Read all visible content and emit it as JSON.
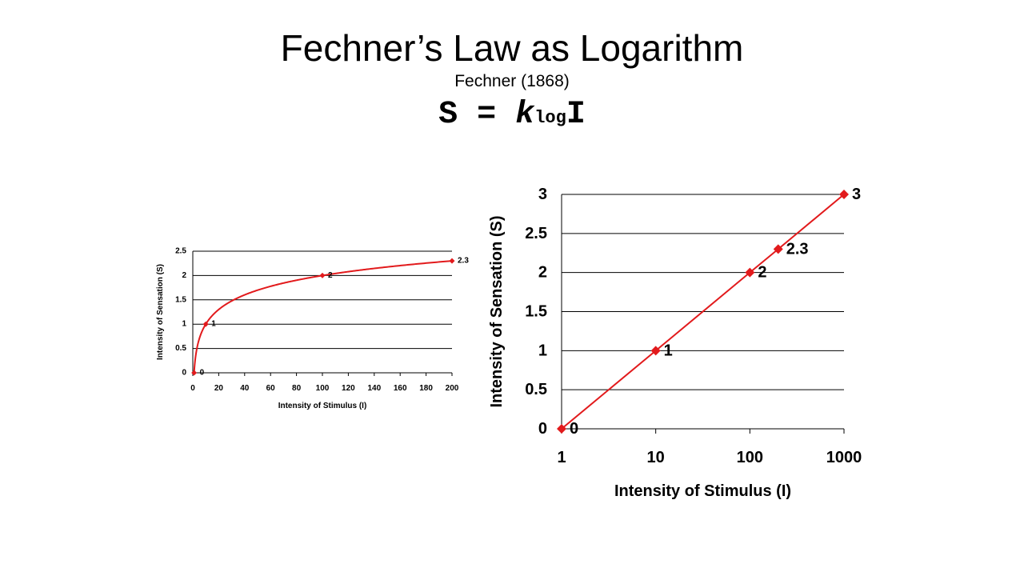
{
  "slide": {
    "title": "Fechner’s Law as Logarithm",
    "subtitle": "Fechner (1868)",
    "formula": {
      "lhs": "S",
      "eq": "=",
      "k": "k",
      "log": "log",
      "var": "I"
    }
  },
  "chart_data": [
    {
      "type": "line",
      "title": "",
      "xlabel": "Intensity of Stimulus (I)",
      "ylabel": "Intensity of Sensation (S)",
      "xscale": "linear",
      "xlim": [
        0,
        200
      ],
      "ylim": [
        0,
        2.5
      ],
      "xticks": [
        0,
        20,
        40,
        60,
        80,
        100,
        120,
        140,
        160,
        180,
        200
      ],
      "yticks": [
        0,
        0.5,
        1,
        1.5,
        2,
        2.5
      ],
      "ytick_labels": [
        "0",
        "0.5",
        "1",
        "1.5",
        "2",
        "2.5"
      ],
      "grid": "horizontal",
      "legend": "none",
      "line_color": "#e21a1c",
      "points": [
        {
          "x": 1,
          "y": 0,
          "label": "0"
        },
        {
          "x": 10,
          "y": 1,
          "label": "1"
        },
        {
          "x": 100,
          "y": 2,
          "label": "2"
        },
        {
          "x": 200,
          "y": 2.3,
          "label": "2.3"
        }
      ]
    },
    {
      "type": "line",
      "title": "",
      "xlabel": "Intensity of Stimulus (I)",
      "ylabel": "Intensity of Sensation (S)",
      "xscale": "log",
      "xlim": [
        1,
        1000
      ],
      "ylim": [
        0,
        3
      ],
      "xticks": [
        1,
        10,
        100,
        1000
      ],
      "yticks": [
        0,
        0.5,
        1,
        1.5,
        2,
        2.5,
        3
      ],
      "ytick_labels": [
        "0",
        "0.5",
        "1",
        "1.5",
        "2",
        "2.5",
        "3"
      ],
      "grid": "horizontal",
      "legend": "none",
      "line_color": "#e21a1c",
      "points": [
        {
          "x": 1,
          "y": 0,
          "label": "0"
        },
        {
          "x": 10,
          "y": 1,
          "label": "1"
        },
        {
          "x": 100,
          "y": 2,
          "label": "2"
        },
        {
          "x": 200,
          "y": 2.3,
          "label": "2.3"
        },
        {
          "x": 1000,
          "y": 3,
          "label": "3"
        }
      ]
    }
  ]
}
